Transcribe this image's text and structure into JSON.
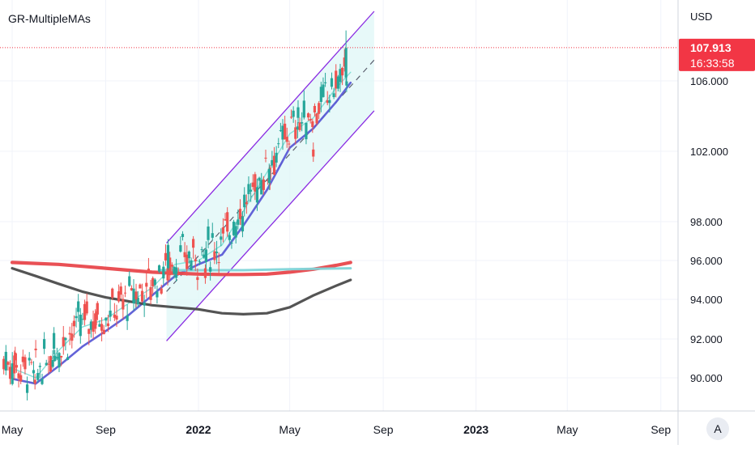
{
  "indicator": {
    "title": "GR-MultipleMAs"
  },
  "currency": "USD",
  "last_price": {
    "value": "107.913",
    "countdown": "16:33:58",
    "color": "#f23645"
  },
  "auto_scale_label": "A",
  "chart_data": {
    "type": "candlestick",
    "title": "",
    "price_axis": {
      "ticks": [
        90.0,
        92.0,
        94.0,
        96.0,
        98.0,
        102.0,
        106.0
      ],
      "tick_labels": [
        "90.000",
        "92.000",
        "94.000",
        "96.000",
        "98.000",
        "102.000",
        "106.000"
      ],
      "currency": "USD"
    },
    "time_axis": {
      "ticks": [
        "2021-05-01",
        "2021-09-01",
        "2022-01-01",
        "2022-05-01",
        "2022-09-01",
        "2023-01-01",
        "2023-05-01",
        "2023-09-01"
      ],
      "tick_labels": [
        "May",
        "Sep",
        "2022",
        "May",
        "Sep",
        "2023",
        "May",
        "Sep"
      ]
    },
    "grid": true,
    "colors": {
      "up": "#26a69a",
      "down": "#ef5350"
    },
    "candles_sample": [
      {
        "date": "2021-05-05",
        "open": 91.3,
        "close": 90.9,
        "high": 91.6,
        "low": 90.5
      },
      {
        "date": "2021-05-31",
        "open": 89.9,
        "close": 89.7,
        "high": 90.2,
        "low": 89.4
      },
      {
        "date": "2021-06-25",
        "open": 91.5,
        "close": 92.3,
        "high": 92.6,
        "low": 91.2
      },
      {
        "date": "2021-08-20",
        "open": 93.4,
        "close": 93.0,
        "high": 93.8,
        "low": 92.7
      },
      {
        "date": "2021-10-11",
        "open": 94.4,
        "close": 94.0,
        "high": 94.8,
        "low": 93.6
      },
      {
        "date": "2021-11-22",
        "open": 95.6,
        "close": 96.8,
        "high": 97.1,
        "low": 95.5
      },
      {
        "date": "2022-01-10",
        "open": 95.6,
        "close": 95.1,
        "high": 95.8,
        "low": 94.8
      },
      {
        "date": "2022-02-28",
        "open": 97.5,
        "close": 98.3,
        "high": 98.6,
        "low": 97.2
      },
      {
        "date": "2022-04-04",
        "open": 100.2,
        "close": 101.0,
        "high": 101.3,
        "low": 99.8
      },
      {
        "date": "2022-05-12",
        "open": 103.9,
        "close": 104.5,
        "high": 104.9,
        "low": 103.6
      },
      {
        "date": "2022-06-01",
        "open": 102.1,
        "close": 101.7,
        "high": 102.5,
        "low": 101.4
      },
      {
        "date": "2022-07-14",
        "open": 106.2,
        "close": 107.9,
        "high": 108.9,
        "low": 105.8
      }
    ],
    "moving_averages": [
      {
        "color": "#5b5bd6",
        "points": [
          [
            "2021-05-01",
            89.95
          ],
          [
            "2021-06-01",
            89.7
          ],
          [
            "2021-07-01",
            90.6
          ],
          [
            "2021-08-01",
            91.6
          ],
          [
            "2021-09-01",
            92.4
          ],
          [
            "2021-10-01",
            93.2
          ],
          [
            "2021-11-01",
            94.2
          ],
          [
            "2021-12-01",
            95.2
          ],
          [
            "2022-01-01",
            95.8
          ],
          [
            "2022-02-01",
            96.3
          ],
          [
            "2022-03-01",
            97.8
          ],
          [
            "2022-04-01",
            99.8
          ],
          [
            "2022-05-01",
            102.2
          ],
          [
            "2022-06-01",
            103.3
          ],
          [
            "2022-07-01",
            104.8
          ],
          [
            "2022-07-20",
            105.9
          ]
        ]
      },
      {
        "color": "#7fded6",
        "points": [
          [
            "2021-05-01",
            90.5
          ],
          [
            "2021-06-01",
            90.0
          ],
          [
            "2021-07-01",
            91.4
          ],
          [
            "2021-08-01",
            92.6
          ],
          [
            "2021-09-01",
            93.0
          ],
          [
            "2021-10-01",
            93.8
          ],
          [
            "2021-11-01",
            94.6
          ],
          [
            "2021-12-01",
            95.8
          ],
          [
            "2022-01-01",
            96.0
          ],
          [
            "2022-02-01",
            96.8
          ],
          [
            "2022-03-01",
            98.6
          ],
          [
            "2022-04-01",
            100.8
          ],
          [
            "2022-05-01",
            103.0
          ],
          [
            "2022-06-01",
            103.9
          ],
          [
            "2022-07-01",
            105.6
          ],
          [
            "2022-07-20",
            106.5
          ]
        ]
      },
      {
        "color": "#4b4b4b",
        "points": [
          [
            "2021-05-01",
            95.6
          ],
          [
            "2021-06-01",
            95.2
          ],
          [
            "2021-07-01",
            94.8
          ],
          [
            "2021-08-01",
            94.4
          ],
          [
            "2021-09-01",
            94.1
          ],
          [
            "2021-10-01",
            93.9
          ],
          [
            "2021-11-01",
            93.7
          ],
          [
            "2021-12-01",
            93.6
          ],
          [
            "2022-01-01",
            93.5
          ],
          [
            "2022-02-01",
            93.3
          ],
          [
            "2022-03-01",
            93.25
          ],
          [
            "2022-04-01",
            93.3
          ],
          [
            "2022-05-01",
            93.6
          ],
          [
            "2022-06-01",
            94.2
          ],
          [
            "2022-07-01",
            94.7
          ],
          [
            "2022-07-20",
            95.0
          ]
        ]
      },
      {
        "color": "#e8474c",
        "points": [
          [
            "2021-05-01",
            95.9
          ],
          [
            "2021-06-01",
            95.85
          ],
          [
            "2021-07-01",
            95.8
          ],
          [
            "2021-08-01",
            95.7
          ],
          [
            "2021-09-01",
            95.6
          ],
          [
            "2021-10-01",
            95.5
          ],
          [
            "2021-11-01",
            95.4
          ],
          [
            "2021-12-01",
            95.35
          ],
          [
            "2022-01-01",
            95.3
          ],
          [
            "2022-02-01",
            95.28
          ],
          [
            "2022-03-01",
            95.28
          ],
          [
            "2022-04-01",
            95.3
          ],
          [
            "2022-05-01",
            95.4
          ],
          [
            "2022-06-01",
            95.55
          ],
          [
            "2022-07-01",
            95.75
          ],
          [
            "2022-07-20",
            95.9
          ]
        ]
      },
      {
        "color": "#7fd4d8",
        "points": [
          [
            "2021-11-10",
            95.5
          ],
          [
            "2022-01-01",
            95.5
          ],
          [
            "2022-03-01",
            95.5
          ],
          [
            "2022-05-01",
            95.55
          ],
          [
            "2022-07-20",
            95.6
          ]
        ]
      }
    ],
    "channel": {
      "color": "#8a2be2",
      "fill": "#dff7f7",
      "lower_start": [
        "2021-11-20",
        91.9
      ],
      "lower_end": [
        "2022-08-20",
        104.3
      ],
      "upper_start": [
        "2021-11-20",
        96.9
      ],
      "upper_end": [
        "2022-08-20",
        110.0
      ],
      "middle_start": [
        "2021-11-20",
        94.4
      ],
      "middle_end": [
        "2022-08-20",
        107.2
      ]
    }
  }
}
